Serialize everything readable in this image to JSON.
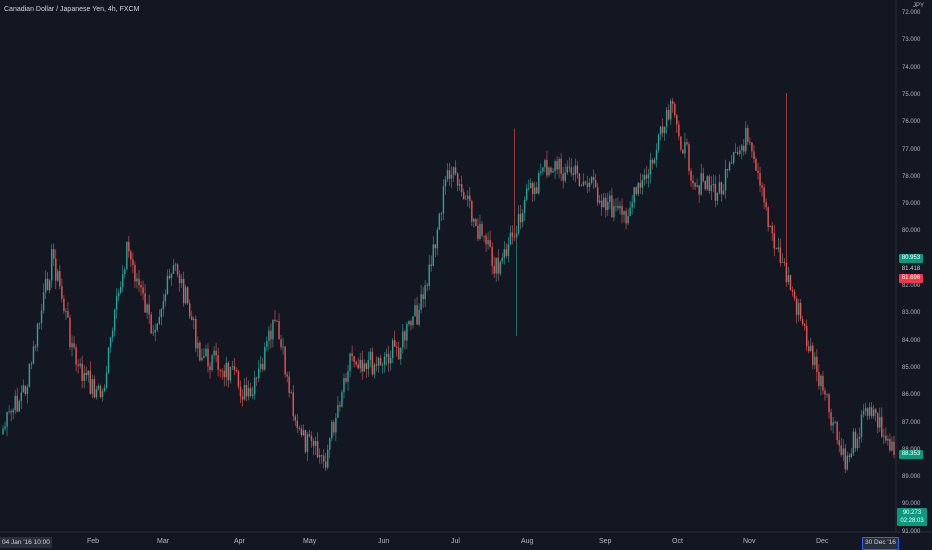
{
  "chart_data": {
    "type": "candlestick",
    "title": "Canadian Dollar / Japanese Yen, 4h, FXCM",
    "y_unit": "JPY",
    "y_axis_inverted": true,
    "ylim": [
      72,
      91
    ],
    "y_ticks": [
      "72.000",
      "73.000",
      "74.000",
      "75.000",
      "76.000",
      "77.000",
      "78.000",
      "79.000",
      "80.000",
      "81.000",
      "82.000",
      "83.000",
      "84.000",
      "85.000",
      "86.000",
      "87.000",
      "88.000",
      "89.000",
      "90.000",
      "91.000"
    ],
    "x_ticks": [
      "Feb",
      "Mar",
      "Apr",
      "May",
      "Jun",
      "Jul",
      "Aug",
      "Sep",
      "Oct",
      "Nov",
      "Dec"
    ],
    "colors": {
      "up": "#26a69a",
      "down": "#ef5350",
      "background": "#131722",
      "text": "#b2b5be"
    },
    "approx_close_path": [
      [
        "04 Jan",
        87.2
      ],
      [
        "Jan mid",
        85.5
      ],
      [
        "Jan late",
        80.8
      ],
      [
        "Jan end",
        85.0
      ],
      [
        "Feb",
        86.0
      ],
      [
        "Feb mid",
        80.5
      ],
      [
        "Feb late",
        83.5
      ],
      [
        "Feb end",
        81.2
      ],
      [
        "Mar",
        84.5
      ],
      [
        "Mar mid",
        85.0
      ],
      [
        "Apr",
        86.2
      ],
      [
        "Apr mid",
        83.3
      ],
      [
        "Apr late",
        87.5
      ],
      [
        "May",
        88.4
      ],
      [
        "May mid",
        84.5
      ],
      [
        "May end",
        84.8
      ],
      [
        "Jun",
        84.2
      ],
      [
        "Jun mid",
        82.5
      ],
      [
        "Jun late",
        77.6
      ],
      [
        "Jul",
        79.5
      ],
      [
        "Jul mid",
        81.5
      ],
      [
        "Jul late",
        79.0
      ],
      [
        "Aug",
        77.5
      ],
      [
        "Aug mid",
        77.8
      ],
      [
        "Aug end",
        78.5
      ],
      [
        "Sep",
        79.5
      ],
      [
        "Sep mid",
        78.0
      ],
      [
        "Oct",
        75.5
      ],
      [
        "Oct mid",
        78.2
      ],
      [
        "Oct late",
        78.5
      ],
      [
        "Nov",
        76.5
      ],
      [
        "Nov mid",
        79.8
      ],
      [
        "Nov late",
        82.5
      ],
      [
        "Dec",
        85.5
      ],
      [
        "Dec mid",
        88.5
      ],
      [
        "Dec late",
        86.2
      ],
      [
        "30 Dec",
        88.2
      ]
    ],
    "price_tags": [
      {
        "label": "80.953",
        "color": "#089981"
      },
      {
        "label": "81.418",
        "color": "#131722"
      },
      {
        "label": "81.696",
        "color": "#f23645"
      },
      {
        "label": "88.353",
        "color": "#089981"
      }
    ],
    "current_price": "90.273",
    "countdown": "02:28:03",
    "time_tags": {
      "left": "04 Jan '16  10:00",
      "right": "30 Dec '16"
    }
  }
}
